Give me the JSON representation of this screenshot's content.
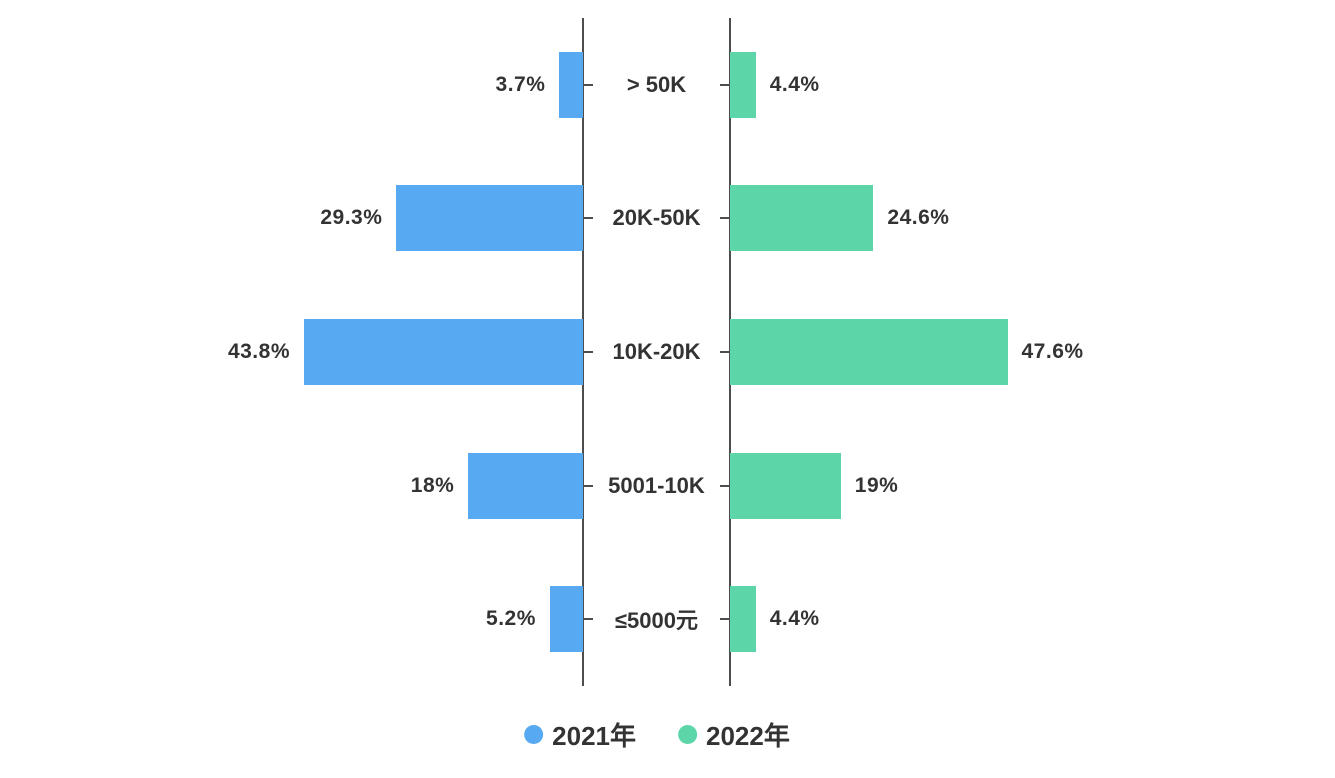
{
  "chart_data": {
    "type": "bar",
    "variant": "butterfly-horizontal",
    "title": "",
    "categories": [
      "> 50K",
      "20K-50K",
      "10K-20K",
      "5001-10K",
      "≤5000元"
    ],
    "series": [
      {
        "name": "2021年",
        "color": "#57a9f1",
        "values": [
          3.7,
          29.3,
          43.8,
          18,
          5.2
        ],
        "labels": [
          "3.7%",
          "29.3%",
          "43.8%",
          "18%",
          "5.2%"
        ],
        "side": "left"
      },
      {
        "name": "2022年",
        "color": "#5cd6a8",
        "values": [
          4.4,
          24.6,
          47.6,
          19,
          4.4
        ],
        "labels": [
          "4.4%",
          "24.6%",
          "47.6%",
          "19%",
          "4.4%"
        ],
        "side": "right"
      }
    ],
    "value_unit": "%",
    "legend_position": "bottom",
    "grid": false,
    "axis_line_color": "#4d4d4d",
    "text_color": "#333333",
    "background_color": "#ffffff"
  }
}
